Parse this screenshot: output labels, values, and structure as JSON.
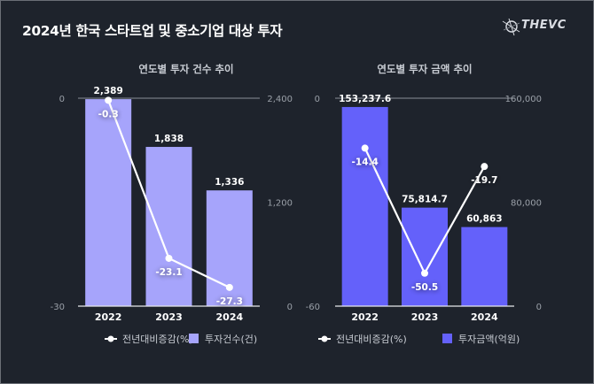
{
  "title": "2024년 한국 스타트업 및 중소기업 대상 투자",
  "logo": {
    "text": "THEVC",
    "icon": "compass-star-icon"
  },
  "colors": {
    "background": "#1e232c",
    "bar_count": "#a6a4fb",
    "bar_amount": "#6461fa",
    "line": "#ffffff",
    "axis": "#9aa0a8"
  },
  "chart_data": [
    {
      "type": "bar+line",
      "title": "연도별 투자 건수 추이",
      "categories": [
        "2022",
        "2023",
        "2024"
      ],
      "series": [
        {
          "name": "투자건수(건)",
          "type": "bar",
          "axis": "right",
          "values": [
            2389,
            1838,
            1336
          ],
          "labels": [
            "2,389",
            "1,838",
            "1,336"
          ]
        },
        {
          "name": "전년대비증감(%)",
          "type": "line",
          "axis": "left",
          "values": [
            -0.3,
            -23.1,
            -27.3
          ],
          "labels": [
            "-0.3",
            "-23.1",
            "-27.3"
          ]
        }
      ],
      "left_axis": {
        "range": [
          -30,
          0
        ],
        "ticks": [
          "0",
          "-30"
        ]
      },
      "right_axis": {
        "range": [
          0,
          2400
        ],
        "ticks": [
          "2,400",
          "1,200",
          "0"
        ]
      },
      "legend": {
        "placement": "bottom",
        "items": [
          "전년대비증감(%)",
          "투자건수(건)"
        ]
      }
    },
    {
      "type": "bar+line",
      "title": "연도별 투자 금액 추이",
      "categories": [
        "2022",
        "2023",
        "2024"
      ],
      "series": [
        {
          "name": "투자금액(억원)",
          "type": "bar",
          "axis": "right",
          "values": [
            153237.6,
            75814.7,
            60863
          ],
          "labels": [
            "153,237.6",
            "75,814.7",
            "60,863"
          ]
        },
        {
          "name": "전년대비증감(%)",
          "type": "line",
          "axis": "left",
          "values": [
            -14.4,
            -50.5,
            -19.7
          ],
          "labels": [
            "-14.4",
            "-50.5",
            "-19.7"
          ]
        }
      ],
      "left_axis": {
        "range": [
          -60,
          0
        ],
        "ticks": [
          "0",
          "-60"
        ]
      },
      "right_axis": {
        "range": [
          0,
          160000
        ],
        "ticks": [
          "160,000",
          "80,000",
          "0"
        ]
      },
      "legend": {
        "placement": "bottom",
        "items": [
          "전년대비증감(%)",
          "투자금액(억원)"
        ]
      }
    }
  ]
}
